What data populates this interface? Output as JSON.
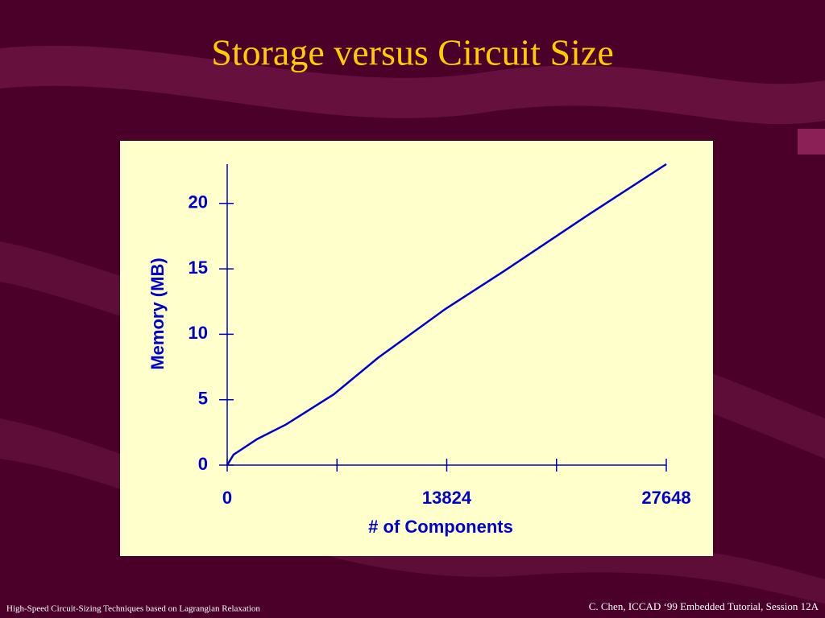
{
  "chart_data": {
    "type": "line",
    "title": "Storage versus Circuit Size",
    "x_label": "# of Components",
    "y_label": "Memory (MB)",
    "x": [
      0,
      400,
      900,
      1900,
      3700,
      6700,
      9500,
      13700,
      17400,
      22700,
      27648
    ],
    "values": [
      0,
      0.8,
      1.2,
      2,
      3.1,
      5.4,
      8.2,
      11.9,
      14.8,
      19.1,
      23
    ],
    "color": "#0000cc",
    "xlim": [
      0,
      27648
    ],
    "ylim": [
      0,
      23
    ],
    "xticks": [
      0,
      13824,
      27648
    ],
    "xminorticks": [
      6912,
      20736
    ],
    "yticks": [
      0,
      5,
      10,
      15,
      20
    ]
  },
  "footer": {
    "left": "High-Speed Circuit-Sizing Techniques based on Lagrangian Relaxation",
    "right": "C. Chen, ICCAD ‘99 Embedded Tutorial, Session 12A"
  }
}
